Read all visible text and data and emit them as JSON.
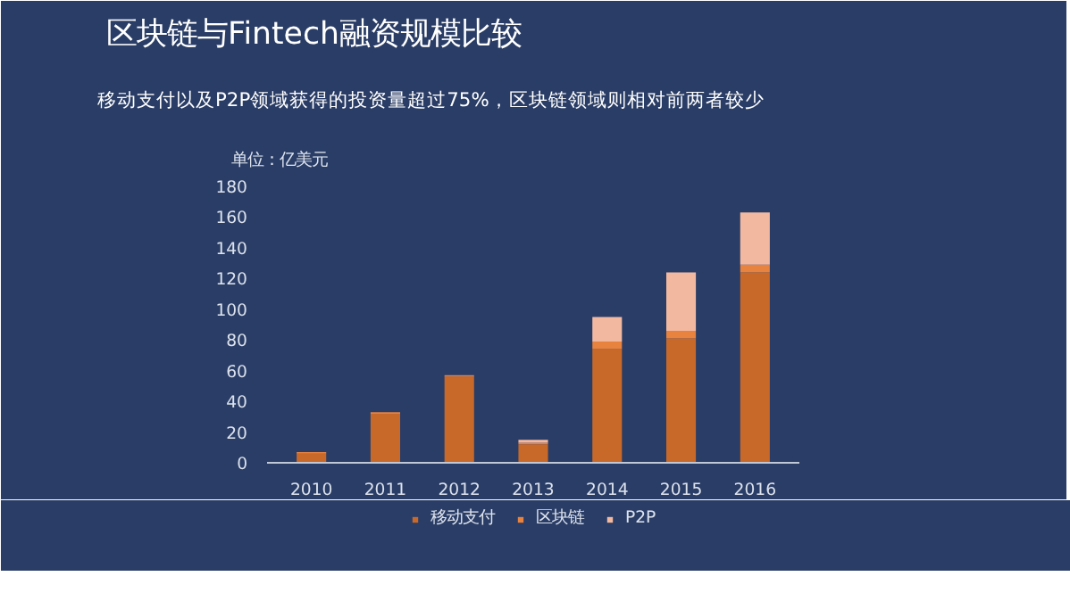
{
  "chart_data": {
    "type": "bar",
    "title": "区块链与Fintech融资规模比较",
    "subtitle": "移动支付以及P2P领域获得的投资量超过75%，区块链领域则相对前两者较少",
    "ylabel": "单位：亿美元",
    "categories": [
      "2010",
      "2011",
      "2012",
      "2013",
      "2014",
      "2015",
      "2016"
    ],
    "stacked": true,
    "series": [
      {
        "name": "移动支付",
        "color": "#c8692a",
        "values": [
          6,
          32,
          56,
          12,
          74,
          81,
          124
        ]
      },
      {
        "name": "区块链",
        "color": "#e8823f",
        "values": [
          1,
          1,
          1,
          1,
          5,
          5,
          5
        ]
      },
      {
        "name": "P2P",
        "color": "#f3b9a0",
        "values": [
          0,
          0,
          0,
          2,
          16,
          38,
          34
        ]
      }
    ],
    "ylim": [
      0,
      180
    ],
    "yticks": [
      0,
      20,
      40,
      60,
      80,
      100,
      120,
      140,
      160,
      180
    ],
    "grid": false,
    "legend": "bottom"
  }
}
